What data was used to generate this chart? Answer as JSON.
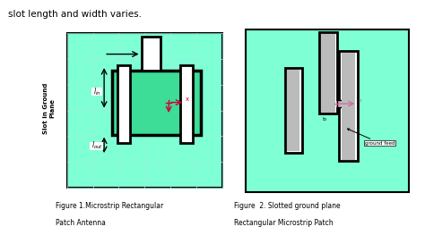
{
  "bg_color": "#ffffff",
  "light_green": "#7fffd4",
  "medium_green": "#3ddc97",
  "black": "#000000",
  "white": "#ffffff",
  "red_axis": "#cc0033",
  "pink_line": "#cc6699",
  "gray_slot": "#bbbbbb",
  "title_text": "slot length and width varies.",
  "fig1_caption_line1": "Figure 1.Microstrip Rectangular",
  "fig1_caption_line2": "Patch Antenna",
  "fig2_caption_line1": "Figure  2. Slotted ground plane",
  "fig2_caption_line2": "Rectangular Microstrip Patch",
  "grid_color": "#99eedd"
}
